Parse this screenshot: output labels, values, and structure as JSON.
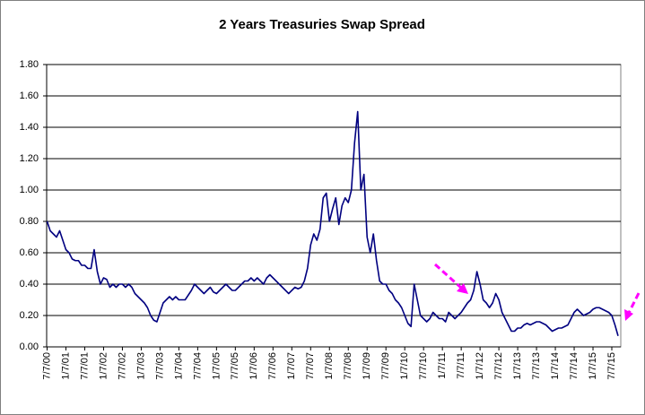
{
  "chart_data": {
    "type": "line",
    "title": "2 Years Treasuries Swap Spread",
    "categories": [
      "7/7/00",
      null,
      null,
      null,
      null,
      null,
      "1/7/01",
      null,
      null,
      null,
      null,
      null,
      "7/7/01",
      null,
      null,
      null,
      null,
      null,
      "1/7/02",
      null,
      null,
      null,
      null,
      null,
      "7/7/02",
      null,
      null,
      null,
      null,
      null,
      "1/7/03",
      null,
      null,
      null,
      null,
      null,
      "7/7/03",
      null,
      null,
      null,
      null,
      null,
      "1/7/04",
      null,
      null,
      null,
      null,
      null,
      "7/7/04",
      null,
      null,
      null,
      null,
      null,
      "1/7/05",
      null,
      null,
      null,
      null,
      null,
      "7/7/05",
      null,
      null,
      null,
      null,
      null,
      "1/7/06",
      null,
      null,
      null,
      null,
      null,
      "7/7/06",
      null,
      null,
      null,
      null,
      null,
      "1/7/07",
      null,
      null,
      null,
      null,
      null,
      "7/7/07",
      null,
      null,
      null,
      null,
      null,
      "1/7/08",
      null,
      null,
      null,
      null,
      null,
      "7/7/08",
      null,
      null,
      null,
      null,
      null,
      "1/7/09",
      null,
      null,
      null,
      null,
      null,
      "7/7/09",
      null,
      null,
      null,
      null,
      null,
      "1/7/10",
      null,
      null,
      null,
      null,
      null,
      "7/7/10",
      null,
      null,
      null,
      null,
      null,
      "1/7/11",
      null,
      null,
      null,
      null,
      null,
      "7/7/11",
      null,
      null,
      null,
      null,
      null,
      "1/7/12",
      null,
      null,
      null,
      null,
      null,
      "7/7/12",
      null,
      null,
      null,
      null,
      null,
      "1/7/13",
      null,
      null,
      null,
      null,
      null,
      "7/7/13",
      null,
      null,
      null,
      null,
      null,
      "1/7/14",
      null,
      null,
      null,
      null,
      null,
      "7/7/14",
      null,
      null,
      null,
      null,
      null,
      "1/7/15",
      null,
      null,
      null,
      null,
      null,
      "7/7/15",
      null,
      null
    ],
    "values": [
      0.8,
      0.74,
      0.72,
      0.7,
      0.74,
      0.68,
      0.62,
      0.6,
      0.56,
      0.55,
      0.55,
      0.52,
      0.52,
      0.5,
      0.5,
      0.62,
      0.48,
      0.4,
      0.44,
      0.43,
      0.38,
      0.4,
      0.38,
      0.4,
      0.4,
      0.38,
      0.4,
      0.38,
      0.34,
      0.32,
      0.3,
      0.28,
      0.25,
      0.2,
      0.17,
      0.16,
      0.22,
      0.28,
      0.3,
      0.32,
      0.3,
      0.32,
      0.3,
      0.3,
      0.3,
      0.33,
      0.36,
      0.4,
      0.38,
      0.36,
      0.34,
      0.36,
      0.38,
      0.35,
      0.34,
      0.36,
      0.38,
      0.4,
      0.38,
      0.36,
      0.36,
      0.38,
      0.4,
      0.42,
      0.42,
      0.44,
      0.42,
      0.44,
      0.42,
      0.4,
      0.44,
      0.46,
      0.44,
      0.42,
      0.4,
      0.38,
      0.36,
      0.34,
      0.36,
      0.38,
      0.37,
      0.38,
      0.42,
      0.5,
      0.65,
      0.72,
      0.68,
      0.75,
      0.95,
      0.98,
      0.8,
      0.88,
      0.95,
      0.78,
      0.9,
      0.95,
      0.92,
      1.0,
      1.3,
      1.5,
      1.0,
      1.1,
      0.7,
      0.6,
      0.72,
      0.55,
      0.42,
      0.4,
      0.4,
      0.36,
      0.34,
      0.3,
      0.28,
      0.25,
      0.2,
      0.15,
      0.13,
      0.4,
      0.3,
      0.2,
      0.18,
      0.16,
      0.18,
      0.22,
      0.2,
      0.18,
      0.18,
      0.16,
      0.22,
      0.2,
      0.18,
      0.2,
      0.22,
      0.25,
      0.28,
      0.3,
      0.36,
      0.48,
      0.4,
      0.3,
      0.28,
      0.25,
      0.28,
      0.34,
      0.3,
      0.22,
      0.18,
      0.14,
      0.1,
      0.1,
      0.12,
      0.12,
      0.14,
      0.15,
      0.14,
      0.15,
      0.16,
      0.16,
      0.15,
      0.14,
      0.12,
      0.1,
      0.11,
      0.12,
      0.12,
      0.13,
      0.14,
      0.18,
      0.22,
      0.24,
      0.22,
      0.2,
      0.21,
      0.22,
      0.24,
      0.25,
      0.25,
      0.24,
      0.23,
      0.22,
      0.2,
      0.14,
      0.07
    ],
    "color": "#000080",
    "ylim": [
      0,
      1.8
    ],
    "yticks": [
      {
        "value": 0,
        "label": "0.00"
      },
      {
        "value": 0.2,
        "label": "0.20"
      },
      {
        "value": 0.4,
        "label": "0.40"
      },
      {
        "value": 0.6,
        "label": "0.60"
      },
      {
        "value": 0.8,
        "label": "0.80"
      },
      {
        "value": 1,
        "label": "1.00"
      },
      {
        "value": 1.2,
        "label": "1.20"
      },
      {
        "value": 1.4,
        "label": "1.40"
      },
      {
        "value": 1.6,
        "label": "1.60"
      },
      {
        "value": 1.8,
        "label": "1.80"
      }
    ],
    "grid": true
  }
}
